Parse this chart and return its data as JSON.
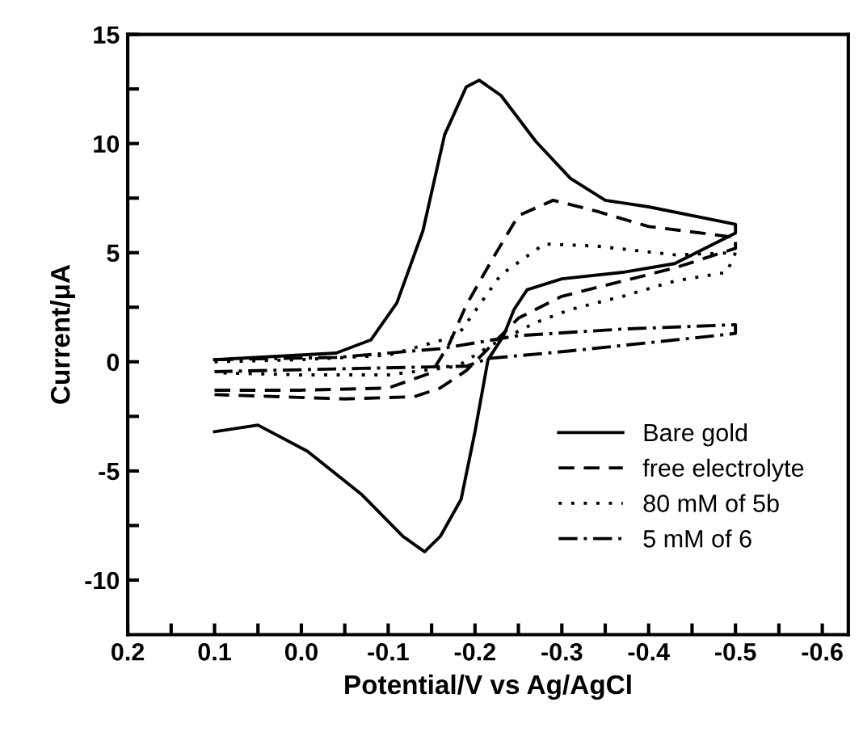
{
  "chart_data": {
    "type": "line",
    "xlabel": "Potential/V vs Ag/AgCl",
    "ylabel": "Current/μA",
    "xlim": [
      0.2,
      -0.63
    ],
    "ylim": [
      -12.5,
      15
    ],
    "xticks": [
      0.2,
      {
        "value": 0.15,
        "label": null
      },
      0.1,
      {
        "value": 0.05,
        "label": null
      },
      {
        "value": 0.0,
        "label": "0.0"
      },
      {
        "value": -0.05,
        "label": null
      },
      -0.1,
      {
        "value": -0.15,
        "label": null
      },
      -0.2,
      {
        "value": -0.25,
        "label": null
      },
      -0.3,
      {
        "value": -0.35,
        "label": null
      },
      -0.4,
      {
        "value": -0.45,
        "label": null
      },
      -0.5,
      {
        "value": -0.55,
        "label": null
      },
      -0.6
    ],
    "yticks": [
      -10,
      {
        "value": -7.5,
        "label": null
      },
      -5,
      {
        "value": -2.5,
        "label": null
      },
      0,
      {
        "value": 2.5,
        "label": null
      },
      5,
      {
        "value": 7.5,
        "label": null
      },
      10,
      {
        "value": 12.5,
        "label": null
      },
      15
    ],
    "grid": false,
    "legend": "bottom right",
    "marker": "none",
    "series": [
      {
        "name": "Bare gold",
        "color": "#000000",
        "line_style": "solid",
        "x": [
          0.1,
          -0.04,
          -0.08,
          -0.11,
          -0.14,
          -0.165,
          -0.19,
          -0.205,
          -0.23,
          -0.27,
          -0.31,
          -0.35,
          -0.4,
          -0.5,
          -0.5,
          -0.46,
          -0.43,
          -0.37,
          -0.3,
          -0.26,
          -0.245,
          -0.233,
          -0.215,
          -0.2,
          -0.184,
          -0.16,
          -0.142,
          -0.117,
          -0.07,
          -0.007,
          0.05,
          0.1
        ],
        "values": [
          0.1,
          0.4,
          1.0,
          2.7,
          6.0,
          10.4,
          12.6,
          12.9,
          12.2,
          10.1,
          8.4,
          7.4,
          7.1,
          6.3,
          5.9,
          5.1,
          4.5,
          4.1,
          3.8,
          3.3,
          2.4,
          1.2,
          0.1,
          -3.2,
          -6.3,
          -8.0,
          -8.7,
          -8.0,
          -6.1,
          -4.1,
          -2.9,
          -3.2
        ]
      },
      {
        "name": "free electrolyte",
        "color": "#000000",
        "line_style": "dashed",
        "x": [
          0.1,
          0.0,
          -0.1,
          -0.15,
          -0.17,
          -0.19,
          -0.22,
          -0.25,
          -0.29,
          -0.34,
          -0.4,
          -0.5,
          -0.5,
          -0.43,
          -0.37,
          -0.3,
          -0.25,
          -0.22,
          -0.19,
          -0.16,
          -0.13,
          -0.05,
          0.1
        ],
        "values": [
          -1.3,
          -1.3,
          -1.2,
          -0.5,
          0.8,
          2.6,
          4.7,
          6.7,
          7.4,
          6.9,
          6.2,
          5.7,
          5.2,
          4.3,
          3.7,
          3.0,
          2.0,
          0.8,
          -0.4,
          -1.2,
          -1.6,
          -1.7,
          -1.5
        ]
      },
      {
        "name": "80 mM of 5b",
        "color": "#000000",
        "line_style": "dotted",
        "x": [
          0.1,
          0.0,
          -0.1,
          -0.18,
          -0.23,
          -0.28,
          -0.34,
          -0.43,
          -0.5,
          -0.49,
          -0.43,
          -0.37,
          -0.31,
          -0.27,
          -0.22,
          -0.18,
          -0.1,
          0.0,
          0.1
        ],
        "values": [
          0.0,
          0.1,
          0.3,
          1.2,
          4.0,
          5.4,
          5.3,
          4.9,
          5.0,
          4.1,
          3.7,
          3.0,
          2.4,
          1.8,
          0.8,
          -0.2,
          -0.6,
          -0.6,
          -0.5
        ]
      },
      {
        "name": "5 mM of 6",
        "color": "#000000",
        "line_style": "dashdot",
        "x": [
          0.1,
          -0.04,
          -0.16,
          -0.25,
          -0.37,
          -0.5,
          -0.5,
          -0.43,
          -0.31,
          -0.215,
          -0.19,
          -0.07,
          0.1
        ],
        "values": [
          0.1,
          0.2,
          0.6,
          1.2,
          1.5,
          1.7,
          1.3,
          1.0,
          0.5,
          0.15,
          -0.2,
          -0.3,
          -0.45
        ]
      }
    ]
  }
}
